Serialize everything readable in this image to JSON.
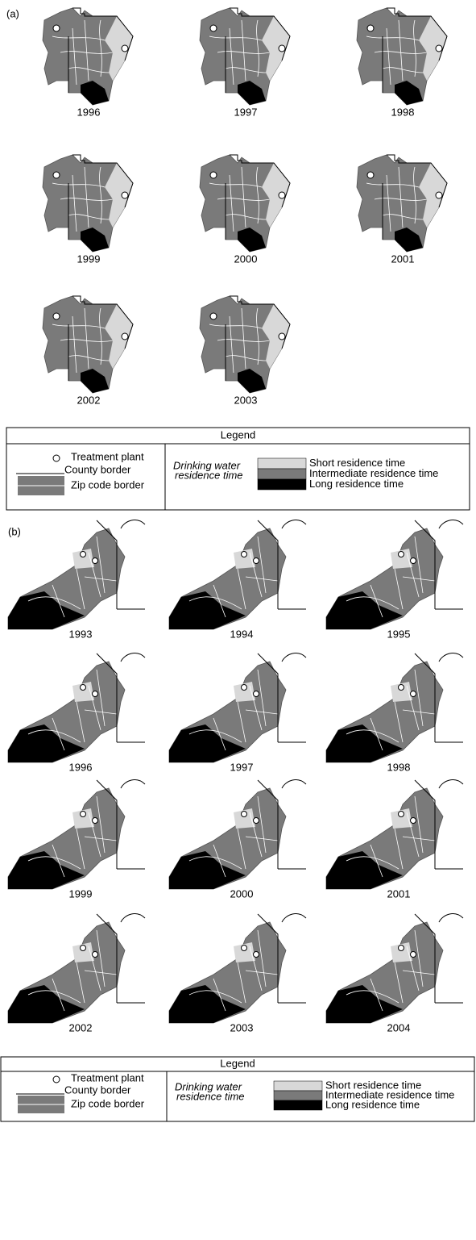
{
  "panels": [
    {
      "label": "(a)",
      "years": [
        "1996",
        "1997",
        "1998",
        "1999",
        "2000",
        "2001",
        "2002",
        "2003"
      ],
      "legend": {
        "title": "Legend",
        "plant": "Treatment plant",
        "county": "County border",
        "zip": "Zip code border",
        "group": [
          "Drinking water",
          "residence time"
        ],
        "short": "Short residence time",
        "intermediate": "Intermediate residence time",
        "long": "Long residence time"
      }
    },
    {
      "label": "(b)",
      "years": [
        "1993",
        "1994",
        "1995",
        "1996",
        "1997",
        "1998",
        "1999",
        "2000",
        "2001",
        "2002",
        "2003",
        "2004"
      ],
      "legend": {
        "title": "Legend",
        "plant": "Treatment plant",
        "county": "County border",
        "zip": "Zip code border",
        "group": [
          "Drinking water",
          "residence time"
        ],
        "short": "Short residence time",
        "intermediate": "Intermediate residence time",
        "long": "Long residence time"
      }
    }
  ]
}
